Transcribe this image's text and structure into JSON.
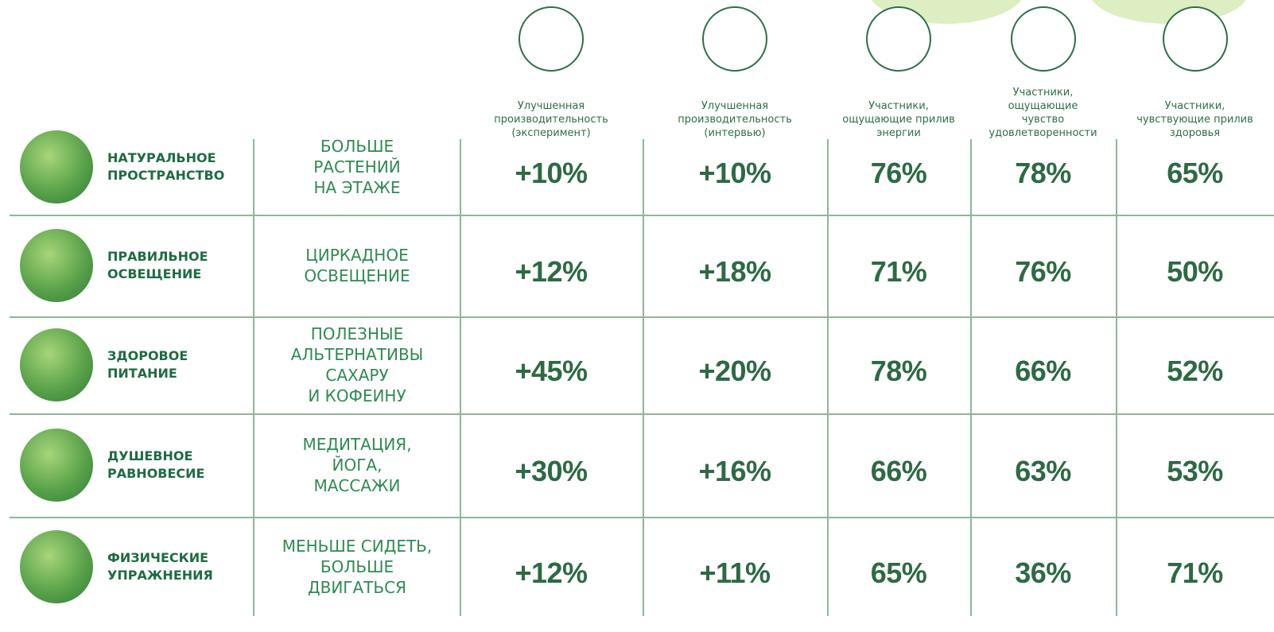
{
  "columns": [
    {
      "label": "Улучшенная\nпроизводительность\n(эксперимент)"
    },
    {
      "label": "Улучшенная\nпроизводительность\n(интервью)"
    },
    {
      "label": "Участники,\nощущающие прилив\nэнергии"
    },
    {
      "label": "Участники,\nощущающие\nчувство\nудовлетворенности"
    },
    {
      "label": "Участники,\nчувствующие прилив\nздоровья"
    }
  ],
  "rows": [
    {
      "name": "НАТУРАЛЬНОЕ\nПРОСТРАНСТВО",
      "intervention": "БОЛЬШЕ\nРАСТЕНИЙ\nНА ЭТАЖЕ",
      "values": [
        "+10%",
        "+10%",
        "76%",
        "78%",
        "65%"
      ]
    },
    {
      "name": "ПРАВИЛЬНОЕ\nОСВЕЩЕНИЕ",
      "intervention": "ЦИРКАДНОЕ\nОСВЕЩЕНИЕ",
      "values": [
        "+12%",
        "+18%",
        "71%",
        "76%",
        "50%"
      ]
    },
    {
      "name": "ЗДОРОВОЕ\nПИТАНИЕ",
      "intervention": "ПОЛЕЗНЫЕ\nАЛЬТЕРНАТИВЫ\nСАХАРУ\nИ КОФЕИНУ",
      "values": [
        "+45%",
        "+20%",
        "78%",
        "66%",
        "52%"
      ]
    },
    {
      "name": "ДУШЕВНОЕ\nРАВНОВЕСИЕ",
      "intervention": "МЕДИТАЦИЯ,\nЙОГА,\nМАССАЖИ",
      "values": [
        "+30%",
        "+16%",
        "66%",
        "63%",
        "53%"
      ]
    },
    {
      "name": "ФИЗИЧЕСКИЕ\nУПРАЖНЕНИЯ",
      "intervention": "МЕНЬШЕ СИДЕТЬ,\nБОЛЬШЕ\nДВИГАТЬСЯ",
      "values": [
        "+12%",
        "+11%",
        "65%",
        "36%",
        "71%"
      ]
    }
  ]
}
